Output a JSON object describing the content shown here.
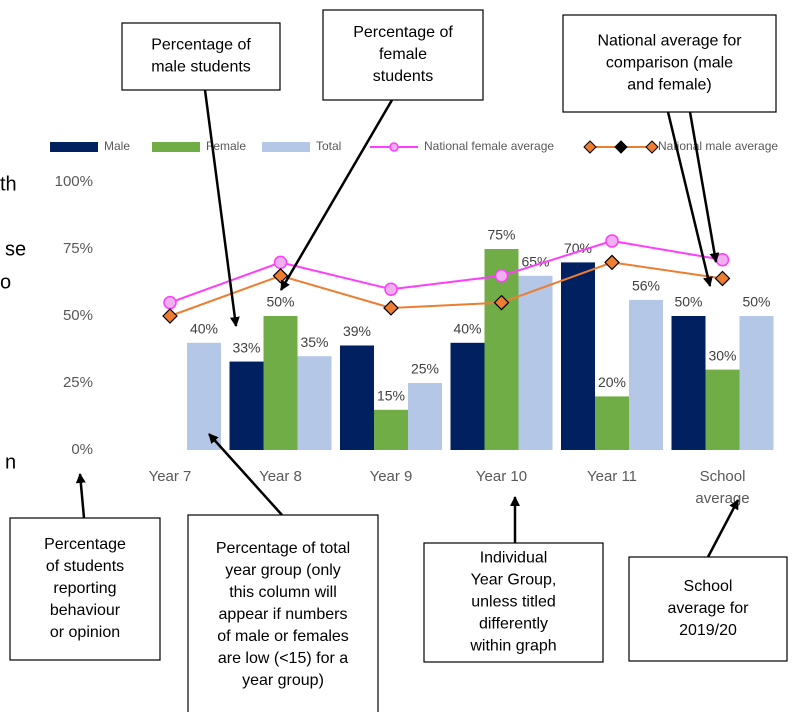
{
  "chart_data": {
    "type": "bar",
    "categories": [
      "Year 7",
      "Year 8",
      "Year 9",
      "Year 10",
      "Year 11",
      "School average"
    ],
    "ylim": [
      0,
      100
    ],
    "yticks": [
      {
        "value": 0,
        "label": "0%"
      },
      {
        "value": 25,
        "label": "25%"
      },
      {
        "value": 50,
        "label": "50%"
      },
      {
        "value": 75,
        "label": "75%"
      },
      {
        "value": 100,
        "label": "100%"
      }
    ],
    "series": [
      {
        "name": "Male",
        "type": "bar",
        "color": "#002060",
        "values": [
          null,
          33,
          39,
          40,
          70,
          50
        ],
        "value_labels": [
          null,
          "33%",
          "39%",
          "40%",
          "70%",
          "50%"
        ]
      },
      {
        "name": "Female",
        "type": "bar",
        "color": "#70ad47",
        "values": [
          null,
          50,
          15,
          75,
          20,
          30
        ],
        "value_labels": [
          null,
          "50%",
          "15%",
          "75%",
          "20%",
          "30%"
        ]
      },
      {
        "name": "Total",
        "type": "bar",
        "color": "#b4c7e7",
        "values": [
          40,
          35,
          25,
          65,
          56,
          50
        ],
        "value_labels": [
          "40%",
          "35%",
          "25%",
          "65%",
          "56%",
          "50%"
        ]
      },
      {
        "name": "National female average",
        "type": "line",
        "marker": "circle",
        "color": "#ff3cff",
        "values": [
          55,
          70,
          60,
          65,
          78,
          71
        ]
      },
      {
        "name": "National male average",
        "type": "line",
        "marker": "diamond",
        "color": "#ed7d31",
        "values": [
          50,
          65,
          53,
          55,
          70,
          64
        ]
      }
    ],
    "annotations": [
      {
        "lines": [
          "Percentage of",
          "male students"
        ]
      },
      {
        "lines": [
          "Percentage of",
          "female",
          "students"
        ]
      },
      {
        "lines": [
          "National average for",
          "comparison (male",
          "and female)"
        ]
      },
      {
        "lines": [
          "Percentage",
          "of students",
          "reporting",
          "behaviour",
          "or opinion"
        ]
      },
      {
        "lines": [
          "Percentage of total",
          "year group (only",
          "this column will",
          "appear if numbers",
          "of male or females",
          "are low (<15) for a",
          "year group)"
        ]
      },
      {
        "lines": [
          "Individual",
          "Year Group,",
          "unless titled",
          "differently",
          "within graph"
        ]
      },
      {
        "lines": [
          "School",
          "average for",
          "2019/20"
        ]
      }
    ],
    "side_fragments": [
      "th",
      "se",
      "o",
      "n"
    ]
  }
}
